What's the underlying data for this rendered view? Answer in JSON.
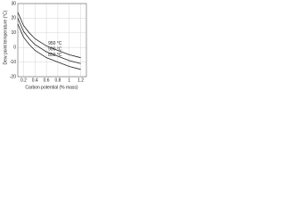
{
  "chart_data": {
    "type": "line",
    "x_label": "Carbon potential (% mass)",
    "y_label": "Dew point temperature (°C)",
    "x": [
      0.1,
      0.2,
      0.3,
      0.4,
      0.6,
      0.8,
      1.0,
      1.2
    ],
    "series": [
      {
        "name": "950 °C",
        "color": "#222222",
        "values": [
          24,
          15,
          10,
          6,
          1,
          -2,
          -5,
          -7
        ]
      },
      {
        "name": "900 °C",
        "color": "#222222",
        "values": [
          20,
          11,
          6,
          2,
          -3,
          -6,
          -9,
          -11
        ]
      },
      {
        "name": "850 °C",
        "color": "#222222",
        "values": [
          16,
          7,
          2,
          -2,
          -7,
          -10,
          -13,
          -15
        ]
      }
    ],
    "xlim": [
      0.1,
      1.3
    ],
    "xticks": [
      0.2,
      0.4,
      0.6,
      0.8,
      1,
      1.2
    ],
    "ylim": [
      -20,
      30
    ],
    "yticks": [
      -20,
      -10,
      0,
      10,
      20,
      30
    ],
    "grid": true
  }
}
